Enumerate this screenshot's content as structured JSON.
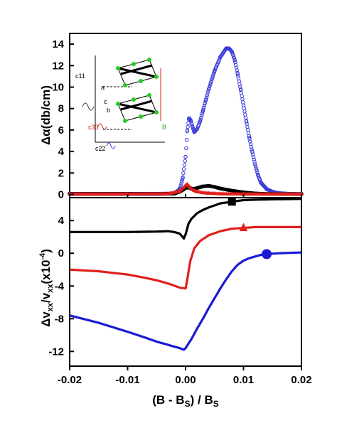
{
  "chart_data": [
    {
      "type": "scatter",
      "panel": "top",
      "ylabel": "Δα(db/cm)",
      "xlim": [
        -0.02,
        0.02
      ],
      "ylim": [
        -0.3,
        15
      ],
      "yticks": [
        0,
        2,
        4,
        6,
        8,
        10,
        12,
        14
      ],
      "series": [
        {
          "color": "#3a3ad8",
          "marker": "open-circle",
          "points": [
            [
              -0.02,
              0.05
            ],
            [
              -0.015,
              0.05
            ],
            [
              -0.01,
              0.05
            ],
            [
              -0.005,
              0.05
            ],
            [
              -0.002,
              0.08
            ],
            [
              -0.001,
              0.5
            ],
            [
              -0.0005,
              1.5
            ],
            [
              0,
              3.5
            ],
            [
              0.0003,
              6
            ],
            [
              0.0006,
              7.1
            ],
            [
              0.0009,
              6.9
            ],
            [
              0.0012,
              6.3
            ],
            [
              0.0015,
              5.8
            ],
            [
              0.002,
              6.1
            ],
            [
              0.0025,
              6.8
            ],
            [
              0.003,
              7.8
            ],
            [
              0.0035,
              8.8
            ],
            [
              0.004,
              9.8
            ],
            [
              0.005,
              11.5
            ],
            [
              0.006,
              12.8
            ],
            [
              0.007,
              13.6
            ],
            [
              0.0075,
              13.6
            ],
            [
              0.008,
              13.3
            ],
            [
              0.0085,
              12.5
            ],
            [
              0.009,
              11.2
            ],
            [
              0.0095,
              9.8
            ],
            [
              0.01,
              8.3
            ],
            [
              0.0105,
              6.8
            ],
            [
              0.011,
              5.3
            ],
            [
              0.0115,
              4.0
            ],
            [
              0.012,
              2.8
            ],
            [
              0.0125,
              1.8
            ],
            [
              0.013,
              1.1
            ],
            [
              0.014,
              0.5
            ],
            [
              0.015,
              0.25
            ],
            [
              0.016,
              0.12
            ],
            [
              0.018,
              0.05
            ],
            [
              0.02,
              0.03
            ]
          ]
        },
        {
          "color": "#000000",
          "marker": "square",
          "points": [
            [
              -0.02,
              0.05
            ],
            [
              -0.01,
              0.05
            ],
            [
              -0.004,
              0.05
            ],
            [
              -0.002,
              0.08
            ],
            [
              -0.001,
              0.25
            ],
            [
              0,
              0.6
            ],
            [
              0.0005,
              0.65
            ],
            [
              0.001,
              0.55
            ],
            [
              0.0015,
              0.5
            ],
            [
              0.002,
              0.6
            ],
            [
              0.003,
              0.75
            ],
            [
              0.004,
              0.8
            ],
            [
              0.005,
              0.7
            ],
            [
              0.006,
              0.55
            ],
            [
              0.008,
              0.35
            ],
            [
              0.01,
              0.2
            ],
            [
              0.012,
              0.1
            ],
            [
              0.014,
              0.05
            ],
            [
              0.02,
              0.03
            ]
          ]
        },
        {
          "color": "#e0201c",
          "marker": "triangle",
          "points": [
            [
              -0.02,
              0.02
            ],
            [
              -0.01,
              0.02
            ],
            [
              -0.003,
              0.05
            ],
            [
              -0.001,
              0.3
            ],
            [
              0,
              0.85
            ],
            [
              0.0003,
              0.95
            ],
            [
              0.0007,
              0.7
            ],
            [
              0.001,
              0.5
            ],
            [
              0.0015,
              0.35
            ],
            [
              0.002,
              0.25
            ],
            [
              0.003,
              0.15
            ],
            [
              0.004,
              0.1
            ],
            [
              0.006,
              0.05
            ],
            [
              0.01,
              0.02
            ],
            [
              0.02,
              0.02
            ]
          ]
        }
      ],
      "inset": {
        "labels": [
          "c11",
          "a",
          "b",
          "c",
          "c33",
          "c22",
          "B"
        ]
      }
    },
    {
      "type": "scatter",
      "panel": "bottom",
      "xlabel": "(B - B_S) / B_S",
      "ylabel": "Δv_xx/v_xx(x10^-4)",
      "xlim": [
        -0.02,
        0.02
      ],
      "ylim": [
        -13.8,
        6.8
      ],
      "xticks": [
        -0.02,
        -0.01,
        0,
        0.01,
        0.02
      ],
      "xtick_labels": [
        "-0.02",
        "-0.01",
        "0.00",
        "0.01",
        "0.02"
      ],
      "yticks": [
        -12,
        -8,
        -4,
        0,
        4
      ],
      "series": [
        {
          "color": "#000000",
          "marker": "square",
          "marker_at": 0.008,
          "points": [
            [
              -0.02,
              2.6
            ],
            [
              -0.015,
              2.6
            ],
            [
              -0.01,
              2.6
            ],
            [
              -0.005,
              2.65
            ],
            [
              -0.003,
              2.7
            ],
            [
              -0.002,
              2.6
            ],
            [
              -0.001,
              2.4
            ],
            [
              -0.0003,
              1.8
            ],
            [
              0,
              2.3
            ],
            [
              0.0005,
              3.6
            ],
            [
              0.001,
              4.2
            ],
            [
              0.002,
              4.9
            ],
            [
              0.003,
              5.3
            ],
            [
              0.004,
              5.6
            ],
            [
              0.006,
              6.1
            ],
            [
              0.008,
              6.3
            ],
            [
              0.01,
              6.5
            ],
            [
              0.012,
              6.55
            ],
            [
              0.015,
              6.6
            ],
            [
              0.02,
              6.65
            ]
          ]
        },
        {
          "color": "#e0201c",
          "marker": "triangle",
          "marker_at": 0.01,
          "points": [
            [
              -0.02,
              -2.0
            ],
            [
              -0.015,
              -2.2
            ],
            [
              -0.01,
              -2.6
            ],
            [
              -0.007,
              -3.0
            ],
            [
              -0.005,
              -3.3
            ],
            [
              -0.003,
              -3.7
            ],
            [
              -0.001,
              -4.2
            ],
            [
              0,
              -4.3
            ],
            [
              0.0003,
              -3.2
            ],
            [
              0.0008,
              -1.0
            ],
            [
              0.0015,
              0.6
            ],
            [
              0.0025,
              1.5
            ],
            [
              0.004,
              2.2
            ],
            [
              0.006,
              2.7
            ],
            [
              0.008,
              3.0
            ],
            [
              0.01,
              3.1
            ],
            [
              0.012,
              3.2
            ],
            [
              0.015,
              3.2
            ],
            [
              0.02,
              3.2
            ]
          ]
        },
        {
          "color": "#1a1ad6",
          "marker": "circle",
          "marker_at": 0.014,
          "points": [
            [
              -0.02,
              -7.6
            ],
            [
              -0.015,
              -8.5
            ],
            [
              -0.01,
              -9.6
            ],
            [
              -0.007,
              -10.3
            ],
            [
              -0.005,
              -10.8
            ],
            [
              -0.003,
              -11.2
            ],
            [
              -0.001,
              -11.6
            ],
            [
              -0.0003,
              -11.8
            ],
            [
              0,
              -11.6
            ],
            [
              0.001,
              -10.5
            ],
            [
              0.002,
              -9.2
            ],
            [
              0.003,
              -8.0
            ],
            [
              0.004,
              -6.7
            ],
            [
              0.005,
              -5.5
            ],
            [
              0.006,
              -4.3
            ],
            [
              0.007,
              -3.2
            ],
            [
              0.008,
              -2.2
            ],
            [
              0.009,
              -1.4
            ],
            [
              0.01,
              -0.9
            ],
            [
              0.011,
              -0.6
            ],
            [
              0.012,
              -0.4
            ],
            [
              0.013,
              -0.2
            ],
            [
              0.014,
              -0.1
            ],
            [
              0.016,
              0
            ],
            [
              0.018,
              0.05
            ],
            [
              0.02,
              0.1
            ]
          ]
        }
      ]
    }
  ]
}
